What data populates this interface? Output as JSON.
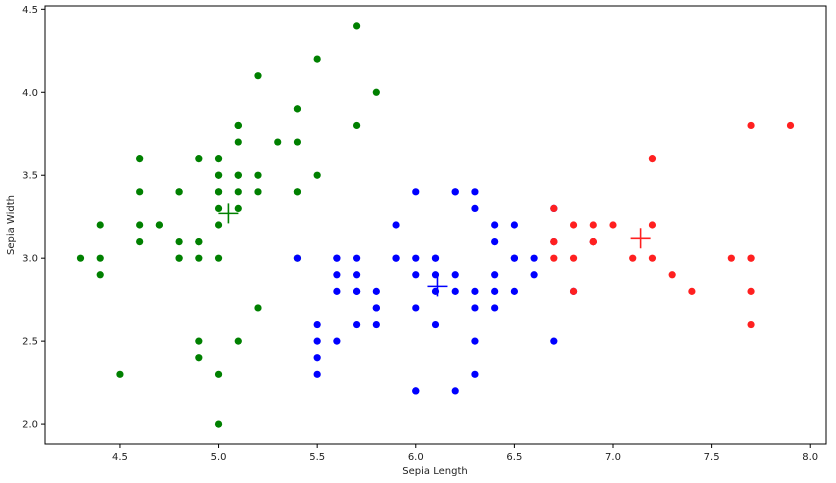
{
  "chart_data": {
    "type": "scatter",
    "title": "",
    "xlabel": "Sepia Length",
    "ylabel": "Sepia Width",
    "xlim": [
      4.12,
      8.08
    ],
    "ylim": [
      1.88,
      4.52
    ],
    "xticks": [
      4.5,
      5.0,
      5.5,
      6.0,
      6.5,
      7.0,
      7.5,
      8.0
    ],
    "yticks": [
      2.0,
      2.5,
      3.0,
      3.5,
      4.0,
      4.5
    ],
    "xtick_labels": [
      "4.5",
      "5.0",
      "5.5",
      "6.0",
      "6.5",
      "7.0",
      "7.5",
      "8.0"
    ],
    "ytick_labels": [
      "2.0",
      "2.5",
      "3.0",
      "3.5",
      "4.0",
      "4.5"
    ],
    "grid": false,
    "legend": "none",
    "series": [
      {
        "color": "#008000",
        "marker": "circle",
        "points": [
          [
            5.1,
            3.5
          ],
          [
            4.9,
            3.0
          ],
          [
            4.7,
            3.2
          ],
          [
            4.6,
            3.1
          ],
          [
            5.0,
            3.6
          ],
          [
            5.4,
            3.9
          ],
          [
            4.6,
            3.4
          ],
          [
            5.0,
            3.4
          ],
          [
            4.4,
            2.9
          ],
          [
            4.9,
            3.1
          ],
          [
            5.4,
            3.7
          ],
          [
            4.8,
            3.4
          ],
          [
            4.8,
            3.0
          ],
          [
            4.3,
            3.0
          ],
          [
            5.8,
            4.0
          ],
          [
            5.7,
            4.4
          ],
          [
            5.4,
            3.9
          ],
          [
            5.1,
            3.5
          ],
          [
            5.7,
            3.8
          ],
          [
            5.1,
            3.8
          ],
          [
            5.4,
            3.4
          ],
          [
            5.1,
            3.7
          ],
          [
            4.6,
            3.6
          ],
          [
            5.1,
            3.3
          ],
          [
            4.8,
            3.4
          ],
          [
            5.0,
            3.0
          ],
          [
            5.0,
            3.4
          ],
          [
            5.2,
            3.5
          ],
          [
            5.2,
            3.4
          ],
          [
            4.7,
            3.2
          ],
          [
            4.8,
            3.1
          ],
          [
            5.4,
            3.4
          ],
          [
            5.2,
            4.1
          ],
          [
            5.5,
            4.2
          ],
          [
            4.9,
            3.1
          ],
          [
            5.0,
            3.2
          ],
          [
            5.5,
            3.5
          ],
          [
            4.9,
            3.6
          ],
          [
            4.4,
            3.0
          ],
          [
            5.1,
            3.4
          ],
          [
            5.0,
            3.5
          ],
          [
            4.5,
            2.3
          ],
          [
            4.4,
            3.2
          ],
          [
            5.0,
            3.5
          ],
          [
            5.1,
            3.8
          ],
          [
            4.8,
            3.0
          ],
          [
            5.1,
            3.8
          ],
          [
            4.6,
            3.2
          ],
          [
            5.3,
            3.7
          ],
          [
            5.0,
            3.3
          ],
          [
            5.2,
            2.7
          ],
          [
            4.9,
            2.5
          ],
          [
            4.9,
            2.4
          ],
          [
            5.0,
            2.3
          ],
          [
            5.0,
            2.0
          ],
          [
            5.1,
            2.5
          ],
          [
            5.4,
            3.0
          ]
        ]
      },
      {
        "color": "#0000ff",
        "marker": "circle",
        "points": [
          [
            6.4,
            3.2
          ],
          [
            5.5,
            2.3
          ],
          [
            6.5,
            2.8
          ],
          [
            5.7,
            2.8
          ],
          [
            6.3,
            3.3
          ],
          [
            6.6,
            2.9
          ],
          [
            5.9,
            3.0
          ],
          [
            6.0,
            2.2
          ],
          [
            6.1,
            2.9
          ],
          [
            5.6,
            2.9
          ],
          [
            6.7,
            3.1
          ],
          [
            5.6,
            3.0
          ],
          [
            5.8,
            2.7
          ],
          [
            6.2,
            2.2
          ],
          [
            5.6,
            2.5
          ],
          [
            5.9,
            3.2
          ],
          [
            6.1,
            2.8
          ],
          [
            6.3,
            2.5
          ],
          [
            6.4,
            2.9
          ],
          [
            6.6,
            3.0
          ],
          [
            6.8,
            2.8
          ],
          [
            6.0,
            2.9
          ],
          [
            5.7,
            2.6
          ],
          [
            5.5,
            2.4
          ],
          [
            5.8,
            2.7
          ],
          [
            6.0,
            2.7
          ],
          [
            5.4,
            3.0
          ],
          [
            6.0,
            3.4
          ],
          [
            6.3,
            2.3
          ],
          [
            5.6,
            3.0
          ],
          [
            5.5,
            2.5
          ],
          [
            6.1,
            3.0
          ],
          [
            5.8,
            2.6
          ],
          [
            5.7,
            3.0
          ],
          [
            5.7,
            2.9
          ],
          [
            6.2,
            2.9
          ],
          [
            5.7,
            2.8
          ],
          [
            6.3,
            2.8
          ],
          [
            6.4,
            2.7
          ],
          [
            6.2,
            3.4
          ],
          [
            6.0,
            3.0
          ],
          [
            6.5,
            3.0
          ],
          [
            6.2,
            2.8
          ],
          [
            6.1,
            2.6
          ],
          [
            6.4,
            2.8
          ],
          [
            5.6,
            2.8
          ],
          [
            6.3,
            2.7
          ],
          [
            6.5,
            3.2
          ],
          [
            6.3,
            3.4
          ],
          [
            6.4,
            3.1
          ],
          [
            6.0,
            2.2
          ],
          [
            6.9,
            3.1
          ],
          [
            5.8,
            2.8
          ],
          [
            6.7,
            3.3
          ],
          [
            5.9,
            3.0
          ],
          [
            6.5,
            3.0
          ],
          [
            6.2,
            3.4
          ],
          [
            6.7,
            2.5
          ],
          [
            5.5,
            2.6
          ],
          [
            6.1,
            3.0
          ]
        ]
      },
      {
        "color": "#ff2020",
        "marker": "circle",
        "points": [
          [
            7.0,
            3.2
          ],
          [
            6.9,
            3.1
          ],
          [
            6.7,
            3.1
          ],
          [
            7.1,
            3.0
          ],
          [
            7.6,
            3.0
          ],
          [
            7.3,
            2.9
          ],
          [
            7.2,
            3.6
          ],
          [
            6.8,
            3.0
          ],
          [
            7.7,
            3.8
          ],
          [
            7.7,
            2.6
          ],
          [
            6.9,
            3.2
          ],
          [
            7.7,
            2.8
          ],
          [
            6.7,
            3.3
          ],
          [
            7.2,
            3.2
          ],
          [
            7.2,
            3.0
          ],
          [
            7.4,
            2.8
          ],
          [
            7.9,
            3.8
          ],
          [
            7.7,
            3.0
          ],
          [
            6.9,
            3.1
          ],
          [
            6.8,
            3.2
          ],
          [
            6.7,
            3.0
          ],
          [
            6.8,
            2.8
          ],
          [
            6.7,
            3.1
          ],
          [
            6.9,
            3.1
          ],
          [
            7.7,
            3.0
          ]
        ]
      }
    ],
    "centroids": [
      {
        "color": "#008000",
        "x": 5.05,
        "y": 3.27
      },
      {
        "color": "#0000ff",
        "x": 6.11,
        "y": 2.83
      },
      {
        "color": "#ff2020",
        "x": 7.14,
        "y": 3.12
      }
    ]
  }
}
